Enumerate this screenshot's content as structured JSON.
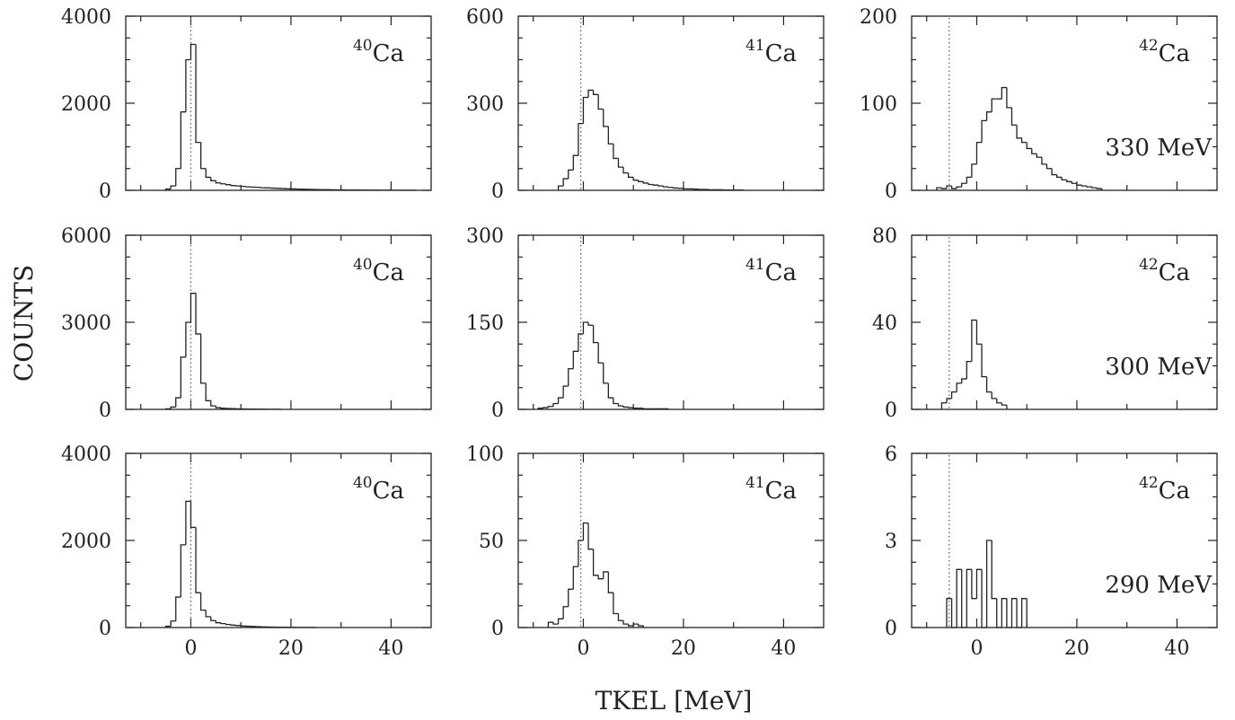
{
  "chart_data": {
    "type": "histogram-grid",
    "xlabel": "TKEL [MeV]",
    "ylabel": "COUNTS",
    "xlim": [
      -13,
      48
    ],
    "xticks": [
      0,
      20,
      40
    ],
    "x_minor_step": 10,
    "bin_width": 1,
    "grid": false,
    "rows": [
      {
        "energy": "330 MeV",
        "panels": [
          {
            "isotope": "Ca",
            "mass": "40",
            "ylim": [
              0,
              4000
            ],
            "yticks": [
              0,
              2000,
              4000
            ],
            "q_line": 0,
            "x_start": -5,
            "counts": [
              30,
              100,
              500,
              1800,
              3000,
              3350,
              1100,
              500,
              300,
              220,
              170,
              150,
              130,
              110,
              100,
              90,
              80,
              75,
              70,
              60,
              55,
              50,
              45,
              40,
              35,
              32,
              28,
              25,
              22,
              20,
              18,
              16,
              14,
              12,
              10,
              9,
              8,
              7,
              6,
              5,
              5,
              4,
              4,
              3,
              3,
              3,
              2,
              2,
              2,
              2
            ]
          },
          {
            "isotope": "Ca",
            "mass": "41",
            "ylim": [
              0,
              600
            ],
            "yticks": [
              0,
              300,
              600
            ],
            "q_line": -0.5,
            "x_start": -5,
            "counts": [
              15,
              40,
              70,
              120,
              230,
              320,
              345,
              330,
              280,
              220,
              160,
              110,
              80,
              60,
              45,
              35,
              30,
              25,
              20,
              18,
              15,
              12,
              10,
              8,
              7,
              5,
              5,
              4,
              3,
              3,
              2,
              2,
              2,
              1,
              1,
              1,
              1
            ]
          },
          {
            "isotope": "Ca",
            "mass": "42",
            "ylim": [
              0,
              200
            ],
            "yticks": [
              0,
              100,
              200
            ],
            "q_line": -5.5,
            "x_start": -8,
            "counts": [
              3,
              2,
              5,
              2,
              4,
              8,
              15,
              30,
              55,
              80,
              90,
              105,
              105,
              118,
              95,
              75,
              60,
              55,
              48,
              42,
              38,
              30,
              25,
              18,
              15,
              12,
              10,
              8,
              6,
              5,
              4,
              3,
              2
            ]
          }
        ]
      },
      {
        "energy": "300 MeV",
        "panels": [
          {
            "isotope": "Ca",
            "mass": "40",
            "ylim": [
              0,
              6000
            ],
            "yticks": [
              0,
              3000,
              6000
            ],
            "q_line": 0,
            "x_start": -5,
            "counts": [
              20,
              80,
              400,
              1800,
              3000,
              4000,
              2600,
              900,
              300,
              120,
              60,
              40,
              30,
              25,
              20,
              15,
              12,
              10,
              8,
              6,
              5,
              4,
              3
            ]
          },
          {
            "isotope": "Ca",
            "mass": "41",
            "ylim": [
              0,
              300
            ],
            "yticks": [
              0,
              150,
              300
            ],
            "q_line": -0.5,
            "x_start": -9,
            "counts": [
              2,
              3,
              5,
              10,
              20,
              40,
              70,
              100,
              130,
              150,
              145,
              115,
              80,
              45,
              20,
              10,
              6,
              4,
              3,
              2,
              2,
              1,
              1,
              1,
              1,
              1
            ]
          },
          {
            "isotope": "Ca",
            "mass": "42",
            "ylim": [
              0,
              80
            ],
            "yticks": [
              0,
              40,
              80
            ],
            "q_line": -5.5,
            "x_start": -7,
            "counts": [
              3,
              5,
              8,
              12,
              14,
              22,
              41,
              30,
              15,
              8,
              5,
              3,
              2
            ]
          }
        ]
      },
      {
        "energy": "290 MeV",
        "panels": [
          {
            "isotope": "Ca",
            "mass": "40",
            "ylim": [
              0,
              4000
            ],
            "yticks": [
              0,
              2000,
              4000
            ],
            "q_line": 0,
            "x_start": -5,
            "counts": [
              30,
              150,
              700,
              1900,
              2900,
              2300,
              800,
              400,
              250,
              160,
              110,
              90,
              70,
              55,
              45,
              35,
              30,
              25,
              20,
              15,
              12,
              10,
              8,
              6,
              5,
              4,
              3,
              3,
              2,
              2
            ]
          },
          {
            "isotope": "Ca",
            "mass": "41",
            "ylim": [
              0,
              100
            ],
            "yticks": [
              0,
              50,
              100
            ],
            "q_line": -0.5,
            "x_start": -7,
            "counts": [
              3,
              2,
              5,
              12,
              22,
              35,
              50,
              60,
              45,
              30,
              28,
              32,
              20,
              8,
              4,
              2,
              1,
              2,
              1
            ]
          },
          {
            "isotope": "Ca",
            "mass": "42",
            "ylim": [
              0,
              6
            ],
            "yticks": [
              0,
              3,
              6
            ],
            "q_line": -5.5,
            "x_start": -6,
            "counts": [
              1,
              0,
              2,
              0,
              2,
              1,
              2,
              0,
              3,
              1,
              0,
              1,
              0,
              1,
              0,
              1
            ]
          }
        ]
      }
    ]
  }
}
